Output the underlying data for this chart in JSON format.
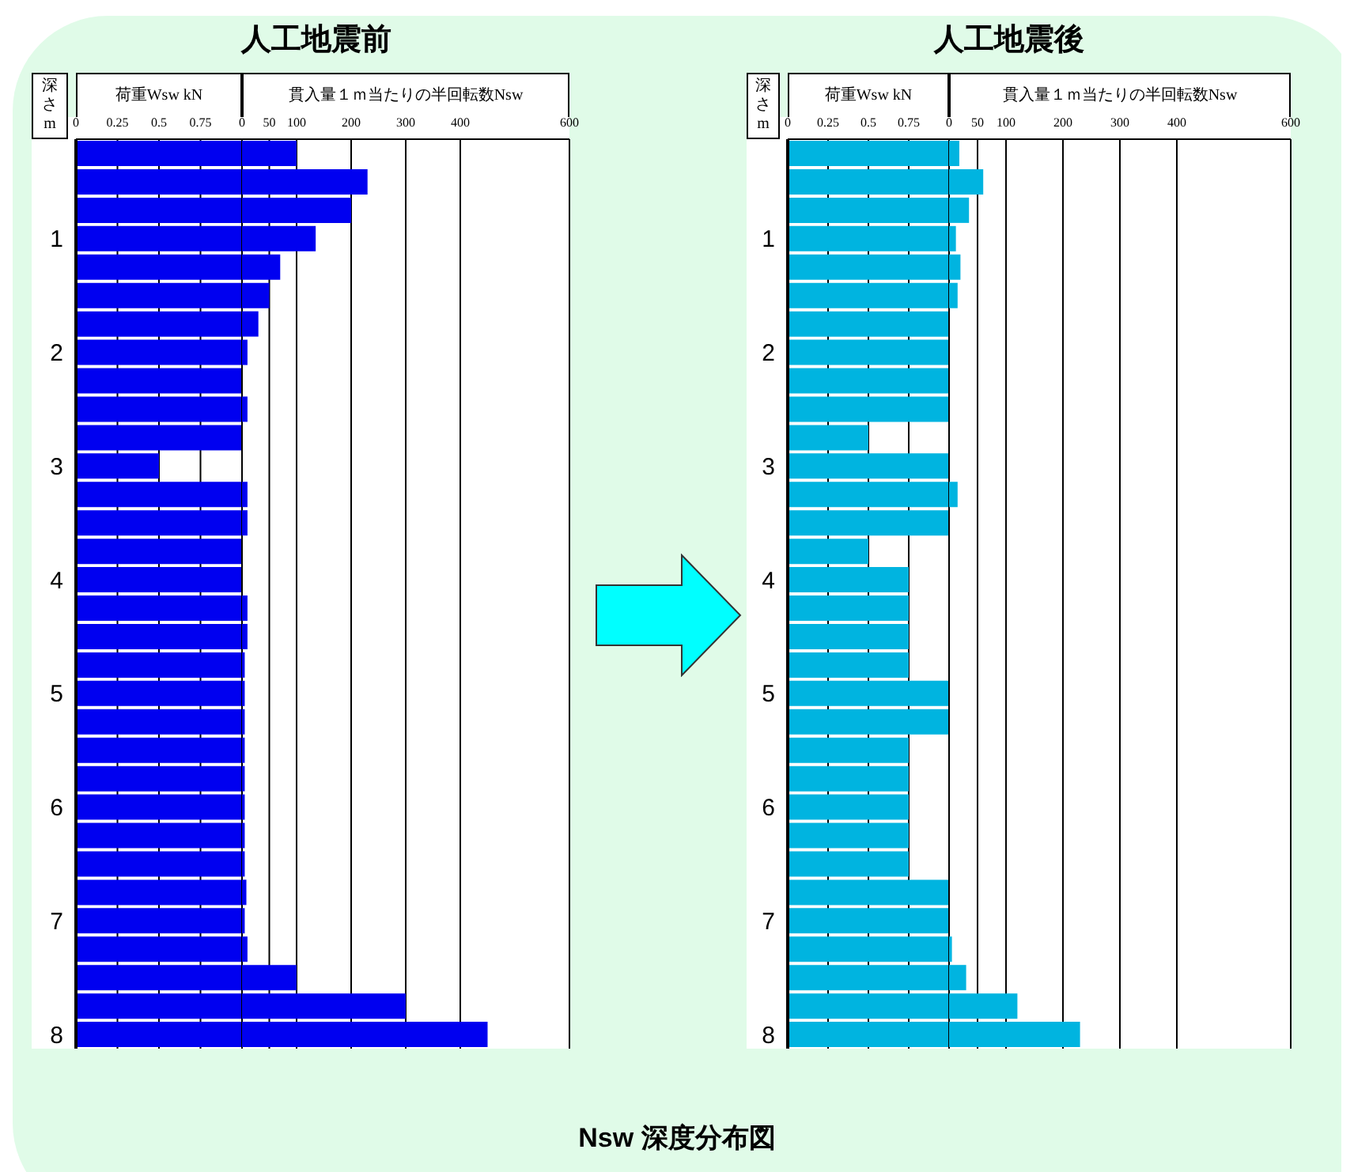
{
  "chart_data": [
    {
      "type": "bar",
      "orientation": "horizontal",
      "xlabel": "荷重Wsw kN",
      "ylabel": "深さm",
      "annotations": [
        "Nsw 深度分布図"
      ],
      "categories": [
        null,
        null,
        null,
        "1",
        null,
        null,
        null,
        "2",
        null,
        null,
        null,
        "3",
        null,
        null,
        null,
        "4",
        null,
        null,
        null,
        "5",
        null,
        null,
        null,
        "6",
        null,
        null,
        null,
        "7",
        null,
        null,
        null,
        "8"
      ],
      "color": "#0000f0",
      "values": [
        1,
        1,
        1,
        1,
        1,
        1,
        1,
        1,
        1,
        1,
        1,
        0.5,
        1,
        1,
        1,
        1,
        1,
        1,
        1,
        1,
        1,
        1,
        1,
        1,
        1,
        1,
        1,
        1,
        1,
        1,
        1,
        1
      ],
      "xlim": [
        0,
        1
      ],
      "xticks": [
        0,
        0.25,
        0.5,
        0.75
      ],
      "grid": "x"
    },
    {
      "type": "bar",
      "orientation": "horizontal",
      "title": "人工地震前",
      "xlabel": "貫入量１ｍ当たりの半回転数Nsw",
      "categories": [
        null,
        null,
        null,
        "1",
        null,
        null,
        null,
        "2",
        null,
        null,
        null,
        "3",
        null,
        null,
        null,
        "4",
        null,
        null,
        null,
        "5",
        null,
        null,
        null,
        "6",
        null,
        null,
        null,
        "7",
        null,
        null,
        null,
        "8"
      ],
      "color": "#0000f0",
      "values": [
        100,
        230,
        200,
        135,
        70,
        50,
        30,
        10,
        0,
        10,
        0,
        0,
        10,
        10,
        0,
        0,
        10,
        10,
        5,
        5,
        5,
        5,
        5,
        5,
        5,
        5,
        8,
        5,
        10,
        100,
        300,
        450
      ],
      "xlim": [
        0,
        600
      ],
      "xticks": [
        0,
        50,
        100,
        200,
        300,
        400,
        600
      ],
      "grid": "x",
      "tick_labels": "x"
    },
    {
      "type": "bar",
      "orientation": "horizontal",
      "xlabel": "荷重Wsw kN",
      "ylabel": "深さm",
      "categories": [
        null,
        null,
        null,
        "1",
        null,
        null,
        null,
        "2",
        null,
        null,
        null,
        "3",
        null,
        null,
        null,
        "4",
        null,
        null,
        null,
        "5",
        null,
        null,
        null,
        "6",
        null,
        null,
        null,
        "7",
        null,
        null,
        null,
        "8"
      ],
      "color": "#00b4e0",
      "values": [
        1,
        1,
        1,
        1,
        1,
        1,
        1,
        1,
        1,
        1,
        0.5,
        1,
        1,
        1,
        0.5,
        0.75,
        0.75,
        0.75,
        0.75,
        1,
        1,
        0.75,
        0.75,
        0.75,
        0.75,
        0.75,
        1,
        1,
        1,
        1,
        1,
        1
      ],
      "xlim": [
        0,
        1
      ],
      "xticks": [
        0,
        0.25,
        0.5,
        0.75
      ],
      "grid": "x"
    },
    {
      "type": "bar",
      "orientation": "horizontal",
      "title": "人工地震後",
      "xlabel": "貫入量１ｍ当たりの半回転数Nsw",
      "categories": [
        null,
        null,
        null,
        "1",
        null,
        null,
        null,
        "2",
        null,
        null,
        null,
        "3",
        null,
        null,
        null,
        "4",
        null,
        null,
        null,
        "5",
        null,
        null,
        null,
        "6",
        null,
        null,
        null,
        "7",
        null,
        null,
        null,
        "8"
      ],
      "color": "#00b4e0",
      "values": [
        18,
        60,
        35,
        12,
        20,
        15,
        0,
        0,
        0,
        0,
        0,
        0,
        15,
        0,
        0,
        0,
        0,
        0,
        0,
        0,
        0,
        0,
        0,
        0,
        0,
        0,
        0,
        0,
        5,
        30,
        120,
        230
      ],
      "xlim": [
        0,
        600
      ],
      "xticks": [
        0,
        50,
        100,
        200,
        300,
        400,
        600
      ],
      "grid": "x",
      "tick_labels": "x"
    }
  ]
}
